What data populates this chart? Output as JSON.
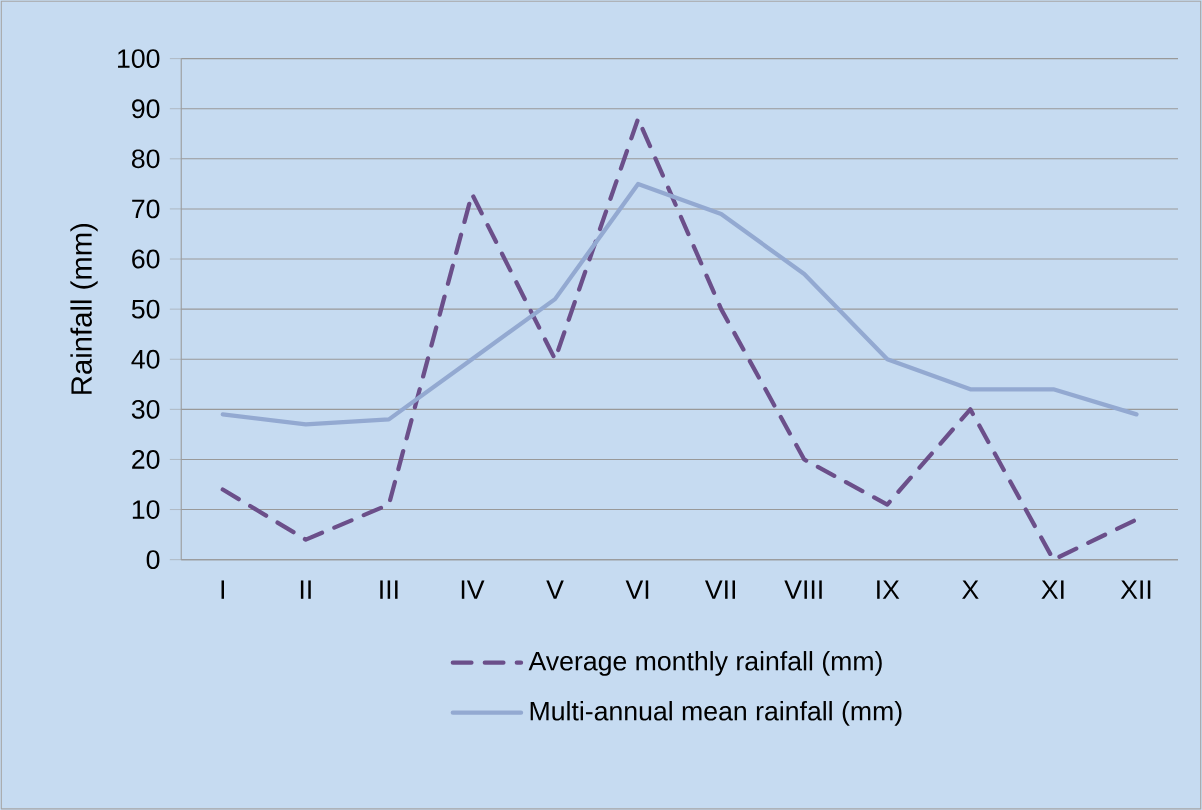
{
  "chart_data": {
    "type": "line",
    "ylabel": "Rainfall (mm)",
    "categories": [
      "I",
      "II",
      "III",
      "IV",
      "V",
      "VI",
      "VII",
      "VIII",
      "IX",
      "X",
      "XI",
      "XII"
    ],
    "series": [
      {
        "name": "Average monthly rainfall (mm)",
        "color": "#6b4f8a",
        "line_style": "dashed",
        "values": [
          14,
          4,
          11,
          73,
          40,
          88,
          50,
          20,
          11,
          30,
          0,
          8
        ]
      },
      {
        "name": "Multi-annual mean  rainfall (mm)",
        "color": "#93a9d1",
        "line_style": "solid",
        "values": [
          29,
          27,
          28,
          40,
          52,
          75,
          69,
          57,
          40,
          34,
          34,
          29
        ]
      }
    ],
    "ylim": [
      0,
      100
    ],
    "yticks": [
      0,
      10,
      20,
      30,
      40,
      50,
      60,
      70,
      80,
      90,
      100
    ],
    "grid": "y",
    "legend": "bottom",
    "marker": "none"
  }
}
